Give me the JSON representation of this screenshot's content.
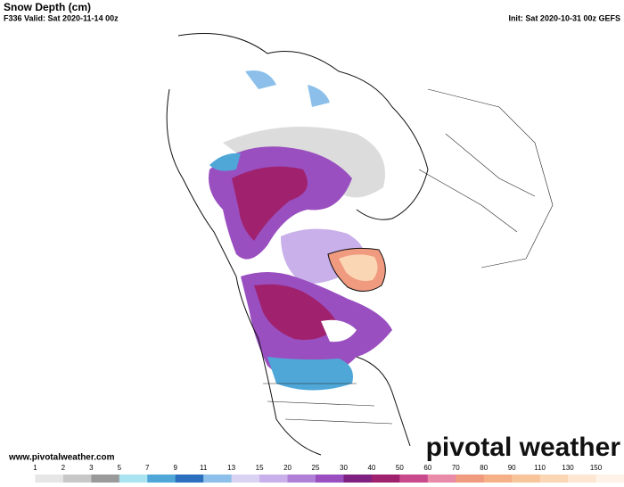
{
  "header": {
    "title": "Snow Depth (cm)",
    "valid": "F336 Valid: Sat 2020-11-14 00z",
    "init": "Init: Sat 2020-10-31 00z GEFS"
  },
  "footer": {
    "url": "www.pivotalweather.com",
    "logo": "pivotal weather"
  },
  "colorbar": {
    "labels": [
      1,
      2,
      3,
      5,
      7,
      9,
      11,
      13,
      15,
      20,
      25,
      30,
      40,
      50,
      60,
      70,
      80,
      90,
      110,
      130,
      150
    ],
    "colors": [
      "#ffffff",
      "#e6e6e6",
      "#c8c8c8",
      "#9a9a9a",
      "#a9e4f0",
      "#4fa7d8",
      "#2c6fbf",
      "#8cc0ea",
      "#d9d2f2",
      "#c9b0ea",
      "#b07fd8",
      "#9a4fc0",
      "#7e2180",
      "#a0226e",
      "#c94a8c",
      "#e88aa8",
      "#f09a80",
      "#f5b088",
      "#f8c49a",
      "#fbd6b4",
      "#fde6d2",
      "#fff2e8"
    ]
  }
}
